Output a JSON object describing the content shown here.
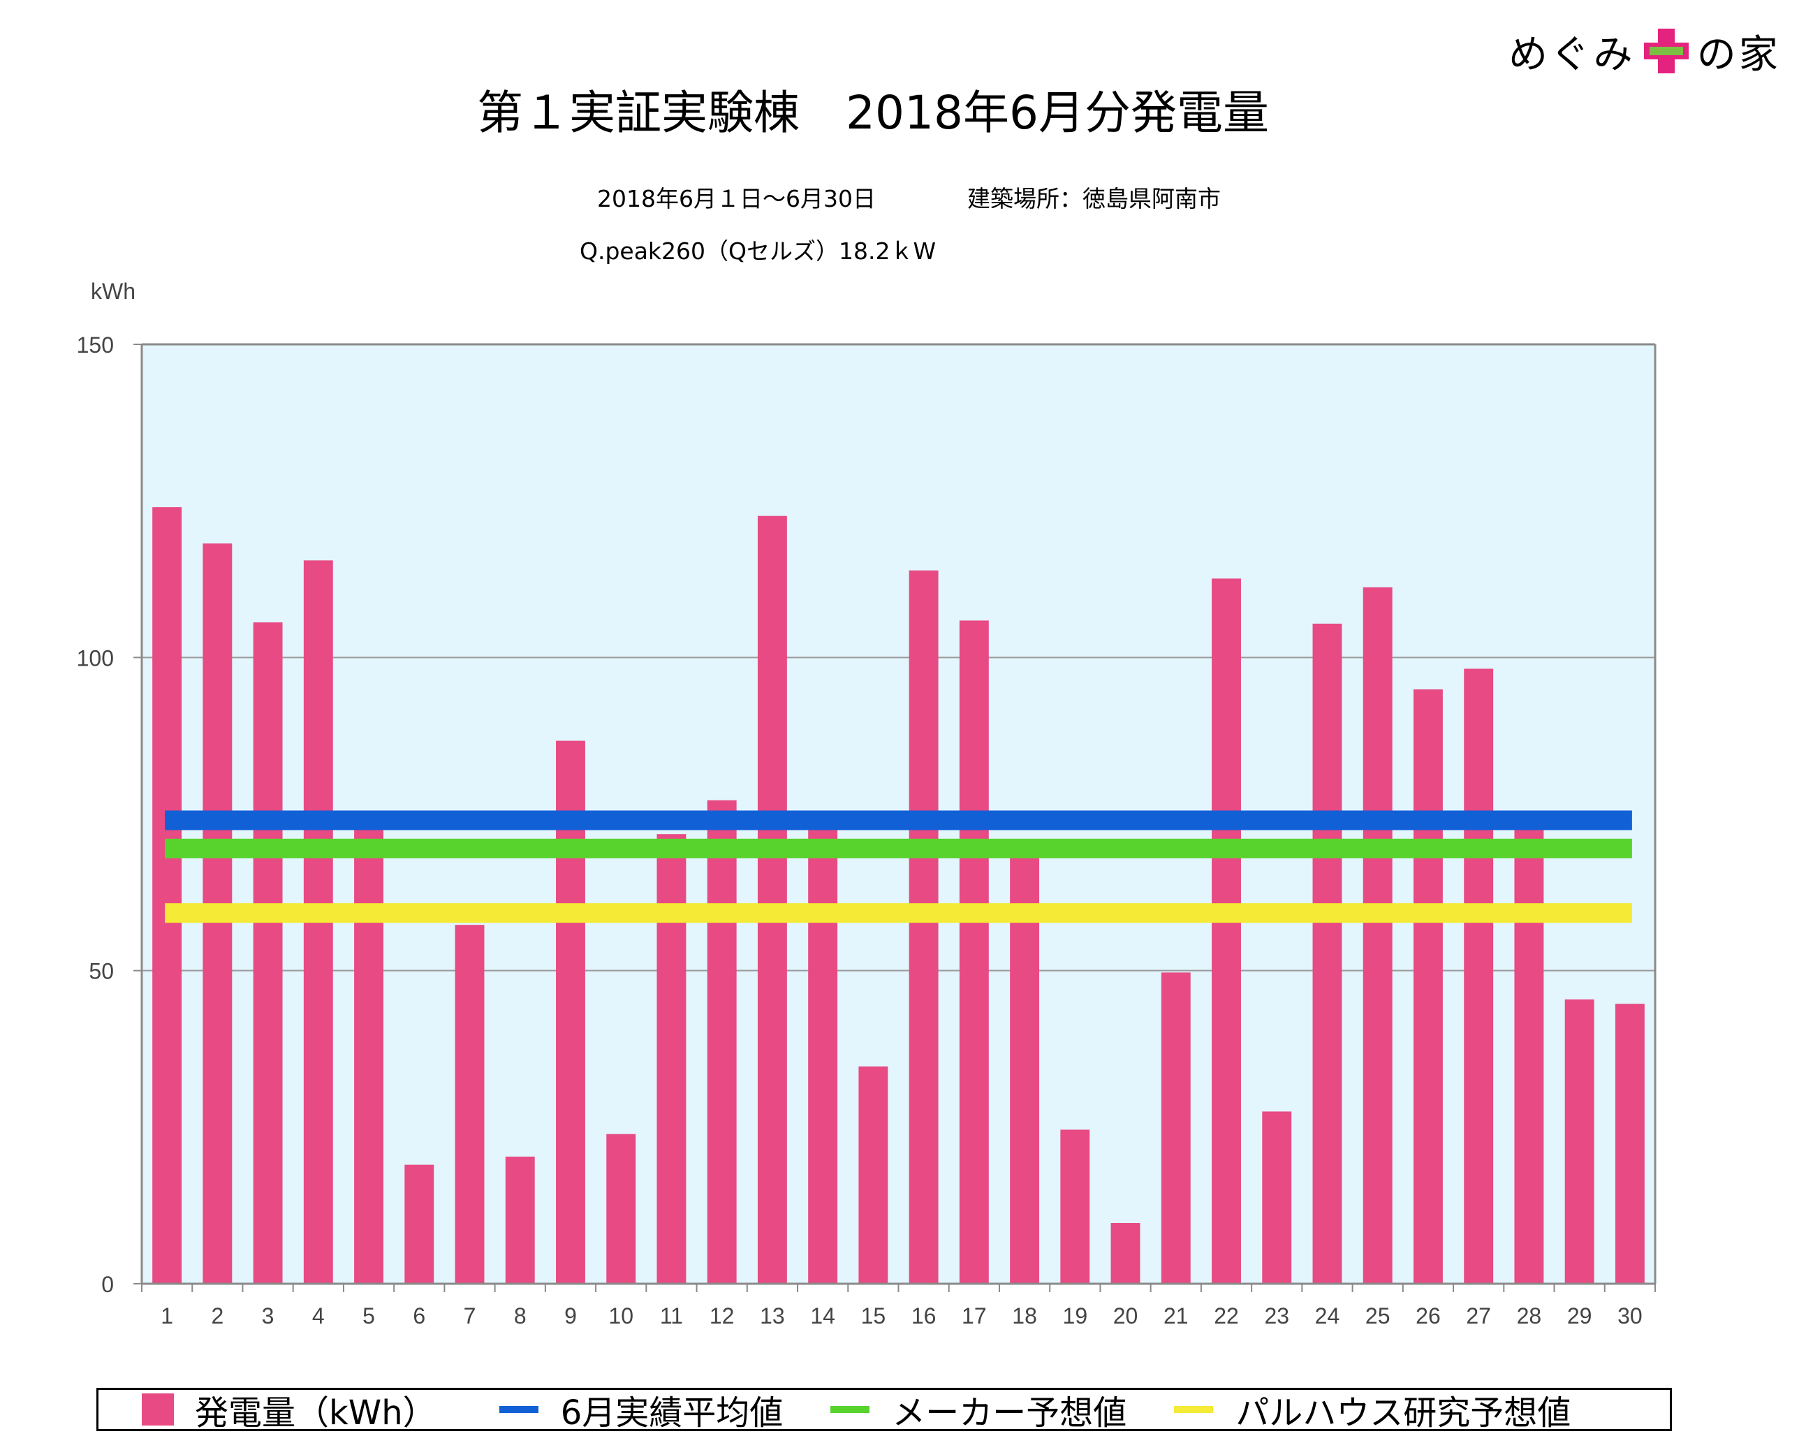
{
  "logo": {
    "text_left": "めぐみ",
    "text_plus": "プラス",
    "text_right": "の家"
  },
  "header": {
    "title": "第１実証実験棟　2018年6月分発電量",
    "period": "2018年6月１日〜6月30日",
    "location": "建築場所：徳島県阿南市",
    "panel": "Q.peak260（Qセルズ）18.2ｋW"
  },
  "colors": {
    "bar": "#E84A83",
    "actual_avg": "#1260D6",
    "maker_forecast": "#58D32E",
    "research_forecast": "#F5EA35",
    "plot_bg": "#E3F5FD"
  },
  "chart_data": {
    "type": "bar",
    "ylabel": "kWh",
    "ylim": [
      0,
      150
    ],
    "yticks": [
      0,
      50,
      100,
      150
    ],
    "categories": [
      "1",
      "2",
      "3",
      "4",
      "5",
      "6",
      "7",
      "8",
      "9",
      "10",
      "11",
      "12",
      "13",
      "14",
      "15",
      "16",
      "17",
      "18",
      "19",
      "20",
      "21",
      "22",
      "23",
      "24",
      "25",
      "26",
      "27",
      "28",
      "29",
      "30"
    ],
    "series": [
      {
        "name": "発電量（kWh）",
        "values": [
          124,
          118.2,
          105.6,
          115.5,
          73,
          19,
          57.3,
          20.3,
          86.7,
          23.9,
          71.8,
          77.2,
          122.6,
          73,
          34.7,
          113.9,
          105.9,
          70,
          24.6,
          9.7,
          49.7,
          112.6,
          27.5,
          105.4,
          111.2,
          94.9,
          98.2,
          73,
          45.4,
          44.7
        ]
      }
    ],
    "reference_lines": [
      {
        "name": "6月実績平均値",
        "value": 74
      },
      {
        "name": "メーカー予想値",
        "value": 69.5
      },
      {
        "name": "パルハウス研究予想値",
        "value": 59.2
      }
    ],
    "grid": true,
    "legend_position": "bottom"
  }
}
